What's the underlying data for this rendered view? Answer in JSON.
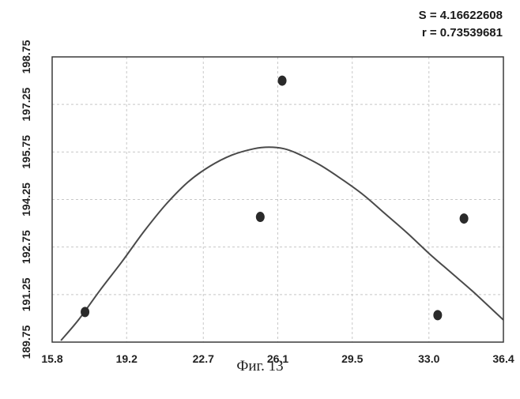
{
  "stats": {
    "s_text": "S = 4.16622608",
    "r_text": "r = 0.73539681"
  },
  "caption": "Фиг. 13",
  "colors": {
    "background": "#ffffff",
    "frame": "#3a3a3a",
    "grid": "#c8c8c8",
    "curve": "#4a4a4a",
    "point": "#2a2a2a",
    "text": "#222222"
  },
  "chart_data": {
    "type": "scatter",
    "title": "",
    "xlabel": "",
    "ylabel": "",
    "xlim": [
      15.8,
      36.4
    ],
    "ylim": [
      189.75,
      198.75
    ],
    "x_ticks": [
      "15.8",
      "19.2",
      "22.7",
      "26.1",
      "29.5",
      "33.0",
      "36.4"
    ],
    "x_tick_values": [
      15.8,
      19.2,
      22.7,
      26.1,
      29.5,
      33.0,
      36.4
    ],
    "y_ticks": [
      "189.75",
      "191.25",
      "192.75",
      "194.25",
      "195.75",
      "197.25",
      "198.75"
    ],
    "y_tick_values": [
      189.75,
      191.25,
      192.75,
      194.25,
      195.75,
      197.25,
      198.75
    ],
    "grid": true,
    "points": [
      {
        "x": 17.3,
        "y": 190.7
      },
      {
        "x": 25.3,
        "y": 193.7
      },
      {
        "x": 26.3,
        "y": 198.0
      },
      {
        "x": 33.4,
        "y": 190.6
      },
      {
        "x": 34.6,
        "y": 193.65
      }
    ],
    "fit_curve": {
      "type": "line",
      "x": [
        16.2,
        17.0,
        18.0,
        19.0,
        20.0,
        21.0,
        22.0,
        23.0,
        24.0,
        25.0,
        25.7,
        26.4,
        27.0,
        28.0,
        29.0,
        30.0,
        31.0,
        32.0,
        33.0,
        34.0,
        35.0,
        36.4
      ],
      "y": [
        189.8,
        190.45,
        191.4,
        192.3,
        193.25,
        194.1,
        194.8,
        195.3,
        195.65,
        195.85,
        195.9,
        195.85,
        195.7,
        195.35,
        194.9,
        194.4,
        193.8,
        193.2,
        192.55,
        191.95,
        191.35,
        190.45
      ]
    }
  }
}
